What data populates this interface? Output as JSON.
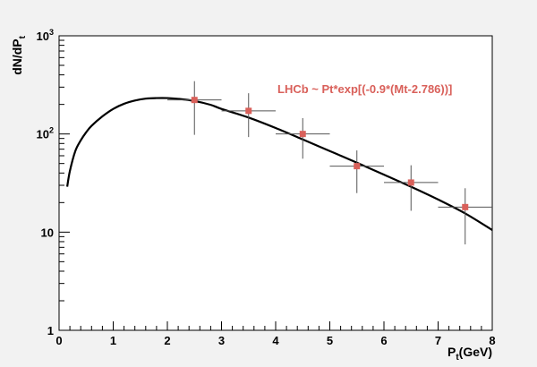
{
  "chart_data": {
    "type": "scatter",
    "title": "",
    "xlabel": "P_t(GeV)",
    "ylabel": "dN/dP_t",
    "xlim": [
      0,
      8
    ],
    "ylim": [
      1,
      1000
    ],
    "yscale": "log",
    "grid": false,
    "x_ticks": [
      "0",
      "1",
      "2",
      "3",
      "4",
      "5",
      "6",
      "7",
      "8"
    ],
    "y_ticks": [
      {
        "value": 1,
        "label": "1",
        "exp": ""
      },
      {
        "value": 10,
        "label": "10",
        "exp": ""
      },
      {
        "value": 100,
        "label": "10",
        "exp": "2"
      },
      {
        "value": 1000,
        "label": "10",
        "exp": "3"
      }
    ],
    "annotation": "LHCb ~ Pt*exp[(-0.9*(Mt-2.786))]",
    "colors": {
      "points": "#d9605a",
      "curve": "#000000",
      "axis": "#000000"
    },
    "points": [
      {
        "x": 2.5,
        "y": 222,
        "x_err": 0.5,
        "y_low": 98,
        "y_high": 345
      },
      {
        "x": 3.5,
        "y": 172,
        "x_err": 0.5,
        "y_low": 93,
        "y_high": 260
      },
      {
        "x": 4.5,
        "y": 100,
        "x_err": 0.5,
        "y_low": 56,
        "y_high": 145
      },
      {
        "x": 5.5,
        "y": 47,
        "x_err": 0.5,
        "y_low": 25,
        "y_high": 68
      },
      {
        "x": 6.5,
        "y": 32,
        "x_err": 0.5,
        "y_low": 16.5,
        "y_high": 48
      },
      {
        "x": 7.5,
        "y": 18,
        "x_err": 0.5,
        "y_low": 7.5,
        "y_high": 28
      }
    ],
    "curve": {
      "x": [
        0.15,
        0.2,
        0.3,
        0.4,
        0.5,
        0.6,
        0.8,
        1.0,
        1.2,
        1.4,
        1.6,
        1.8,
        2.0,
        2.2,
        2.5,
        2.8,
        3.0,
        3.5,
        4.0,
        4.5,
        5.0,
        5.5,
        6.0,
        6.5,
        7.0,
        7.5,
        8.0
      ],
      "y": [
        29,
        42,
        67,
        86,
        104,
        121,
        151,
        180,
        203,
        219,
        229,
        232,
        232,
        228,
        217,
        198,
        180,
        147,
        115,
        88,
        67,
        51,
        38.5,
        29,
        21.5,
        15.5,
        10.5
      ]
    }
  }
}
